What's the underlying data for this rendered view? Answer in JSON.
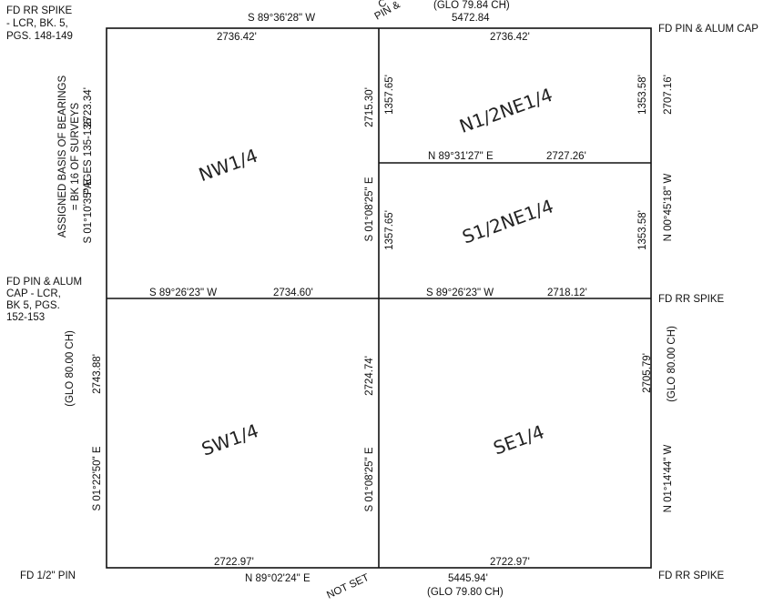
{
  "corners": {
    "nw": [
      "FD RR SPIKE",
      "- LCR, BK. 5,",
      "PGS. 148-149"
    ],
    "ne": "FD PIN & ALUM CAP",
    "w": [
      "FD PIN & ALUM",
      "CAP - LCR,",
      "BK 5, PGS.",
      "152-153"
    ],
    "e": "FD RR SPIKE",
    "sw": "FD 1/2\" PIN",
    "se": "FD RR SPIKE",
    "n_partial": [
      "C",
      "PIN &"
    ],
    "s_partial": "NOT SET"
  },
  "north": {
    "bearing": "S 89°36'28\" W",
    "total_glo": "(GLO 79.84 CH)",
    "total": "5472.84",
    "west_dist": "2736.42'",
    "east_dist": "2736.42'"
  },
  "south": {
    "west_dist": "2722.97'",
    "east_dist": "2722.97'",
    "bearing": "N 89°02'24\" E",
    "total": "5445.94'",
    "total_glo": "(GLO 79.80 CH)"
  },
  "middle": {
    "west_bearing": "S 89°26'23\" W",
    "west_dist": "2734.60'",
    "east_bearing": "S 89°26'23\" W",
    "east_dist": "2718.12'"
  },
  "ne_split": {
    "bearing": "N 89°31'27\" E",
    "dist": "2727.26'"
  },
  "west_line": {
    "basis": [
      "ASSIGNED BASIS OF BEARINGS",
      "= BK 16 OF SURVEYS",
      "PAGES 135-136"
    ],
    "north_dist": "2723.34'",
    "north_bearing": "S 01°10'35\" E",
    "south_glo": "(GLO 80.00 CH)",
    "south_dist": "2743.88'",
    "south_bearing": "S 01°22'50\" E"
  },
  "center_line": {
    "north_dist": "2715.30'",
    "north_bearing": "S 01°08'25\" E",
    "south_dist": "2724.74'",
    "south_bearing": "S 01°08'25\" E",
    "ne_upper_dist": "1357.65'",
    "ne_lower_dist": "1357.65'"
  },
  "east_line": {
    "upper_dist": "1353.58'",
    "lower_dist": "1353.58'",
    "north_dist": "2707.16'",
    "north_bearing": "N 00°45'18\" W",
    "south_dist": "2705.79'",
    "south_glo": "(GLO 80.00 CH)",
    "south_bearing": "N 01°14'44\" W"
  },
  "quarters": {
    "nw": "NW1/4",
    "n_ne": "N1/2NE1/4",
    "s_ne": "S1/2NE1/4",
    "sw": "SW1/4",
    "se": "SE1/4"
  }
}
